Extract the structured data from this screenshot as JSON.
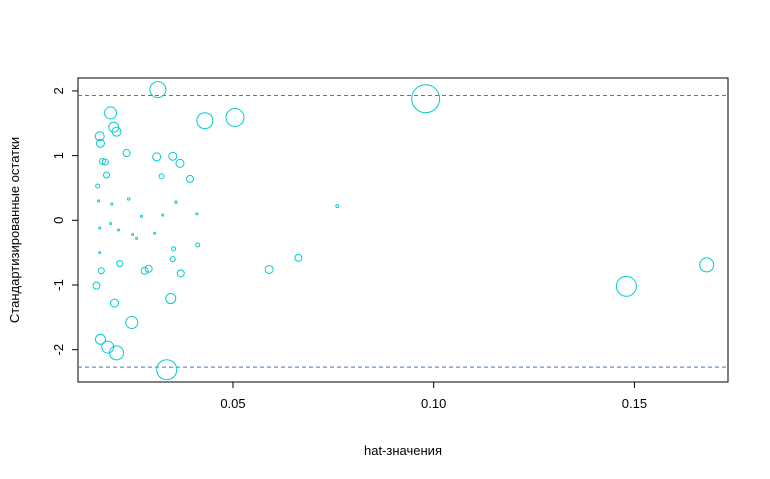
{
  "chart_data": {
    "type": "scatter",
    "title": "",
    "xlabel": "hat-значения",
    "ylabel": "Стандартизированные остатки",
    "xlim": [
      0.0114,
      0.1733
    ],
    "ylim": [
      -2.5,
      2.2
    ],
    "x_ticks": [
      0.05,
      0.1,
      0.15
    ],
    "x_tick_labels": [
      "0.05",
      "0.10",
      "0.15"
    ],
    "y_ticks": [
      -2,
      -1,
      0,
      1,
      2
    ],
    "y_tick_labels": [
      "-2",
      "-1",
      "0",
      "1",
      "2"
    ],
    "grid": false,
    "point_color": "#00CDCD",
    "reference_line_color": "#4A7AB8",
    "reference_lines_y": [
      1.93,
      -2.27
    ],
    "points": [
      {
        "x": 0.098,
        "y": 1.88,
        "size": 14
      },
      {
        "x": 0.148,
        "y": -1.02,
        "size": 10
      },
      {
        "x": 0.168,
        "y": -0.69,
        "size": 7
      },
      {
        "x": 0.0335,
        "y": -2.31,
        "size": 10
      },
      {
        "x": 0.0313,
        "y": 2.02,
        "size": 8
      },
      {
        "x": 0.0505,
        "y": 1.59,
        "size": 9
      },
      {
        "x": 0.043,
        "y": 1.54,
        "size": 8
      },
      {
        "x": 0.021,
        "y": -2.05,
        "size": 7
      },
      {
        "x": 0.0195,
        "y": 1.66,
        "size": 6
      },
      {
        "x": 0.0248,
        "y": -1.58,
        "size": 6
      },
      {
        "x": 0.0188,
        "y": -1.96,
        "size": 6
      },
      {
        "x": 0.017,
        "y": -1.84,
        "size": 5
      },
      {
        "x": 0.0345,
        "y": -1.21,
        "size": 5
      },
      {
        "x": 0.0203,
        "y": 1.44,
        "size": 5
      },
      {
        "x": 0.021,
        "y": 1.37,
        "size": 4.5
      },
      {
        "x": 0.0168,
        "y": 1.3,
        "size": 4.5
      },
      {
        "x": 0.017,
        "y": 1.19,
        "size": 4
      },
      {
        "x": 0.0205,
        "y": -1.28,
        "size": 4
      },
      {
        "x": 0.0235,
        "y": 1.04,
        "size": 3.5
      },
      {
        "x": 0.031,
        "y": 0.98,
        "size": 4
      },
      {
        "x": 0.035,
        "y": 0.99,
        "size": 4
      },
      {
        "x": 0.0368,
        "y": 0.88,
        "size": 4
      },
      {
        "x": 0.0393,
        "y": 0.64,
        "size": 3.5
      },
      {
        "x": 0.059,
        "y": -0.76,
        "size": 4
      },
      {
        "x": 0.0663,
        "y": -0.58,
        "size": 3.5
      },
      {
        "x": 0.016,
        "y": -1.01,
        "size": 3.5
      },
      {
        "x": 0.037,
        "y": -0.82,
        "size": 3.5
      },
      {
        "x": 0.028,
        "y": -0.78,
        "size": 3.5
      },
      {
        "x": 0.029,
        "y": -0.75,
        "size": 3.5
      },
      {
        "x": 0.0175,
        "y": 0.91,
        "size": 3
      },
      {
        "x": 0.0182,
        "y": 0.9,
        "size": 3
      },
      {
        "x": 0.0185,
        "y": 0.7,
        "size": 3
      },
      {
        "x": 0.0322,
        "y": 0.68,
        "size": 2.5
      },
      {
        "x": 0.0218,
        "y": -0.67,
        "size": 3
      },
      {
        "x": 0.035,
        "y": -0.6,
        "size": 2.5
      },
      {
        "x": 0.0172,
        "y": -0.78,
        "size": 3
      },
      {
        "x": 0.0163,
        "y": 0.53,
        "size": 2
      },
      {
        "x": 0.0352,
        "y": -0.44,
        "size": 2
      },
      {
        "x": 0.0412,
        "y": -0.38,
        "size": 2
      },
      {
        "x": 0.076,
        "y": 0.22,
        "size": 1.5
      },
      {
        "x": 0.0165,
        "y": 0.3,
        "size": 1
      },
      {
        "x": 0.0168,
        "y": -0.12,
        "size": 1
      },
      {
        "x": 0.0195,
        "y": -0.05,
        "size": 1
      },
      {
        "x": 0.0215,
        "y": -0.15,
        "size": 1
      },
      {
        "x": 0.024,
        "y": 0.33,
        "size": 1.2
      },
      {
        "x": 0.025,
        "y": -0.22,
        "size": 1
      },
      {
        "x": 0.026,
        "y": -0.28,
        "size": 1
      },
      {
        "x": 0.0272,
        "y": 0.06,
        "size": 1
      },
      {
        "x": 0.0305,
        "y": -0.2,
        "size": 1
      },
      {
        "x": 0.0325,
        "y": 0.08,
        "size": 1
      },
      {
        "x": 0.0358,
        "y": 0.28,
        "size": 1.2
      },
      {
        "x": 0.041,
        "y": 0.1,
        "size": 1
      },
      {
        "x": 0.0168,
        "y": -0.5,
        "size": 1
      },
      {
        "x": 0.0198,
        "y": 0.25,
        "size": 1
      }
    ]
  }
}
